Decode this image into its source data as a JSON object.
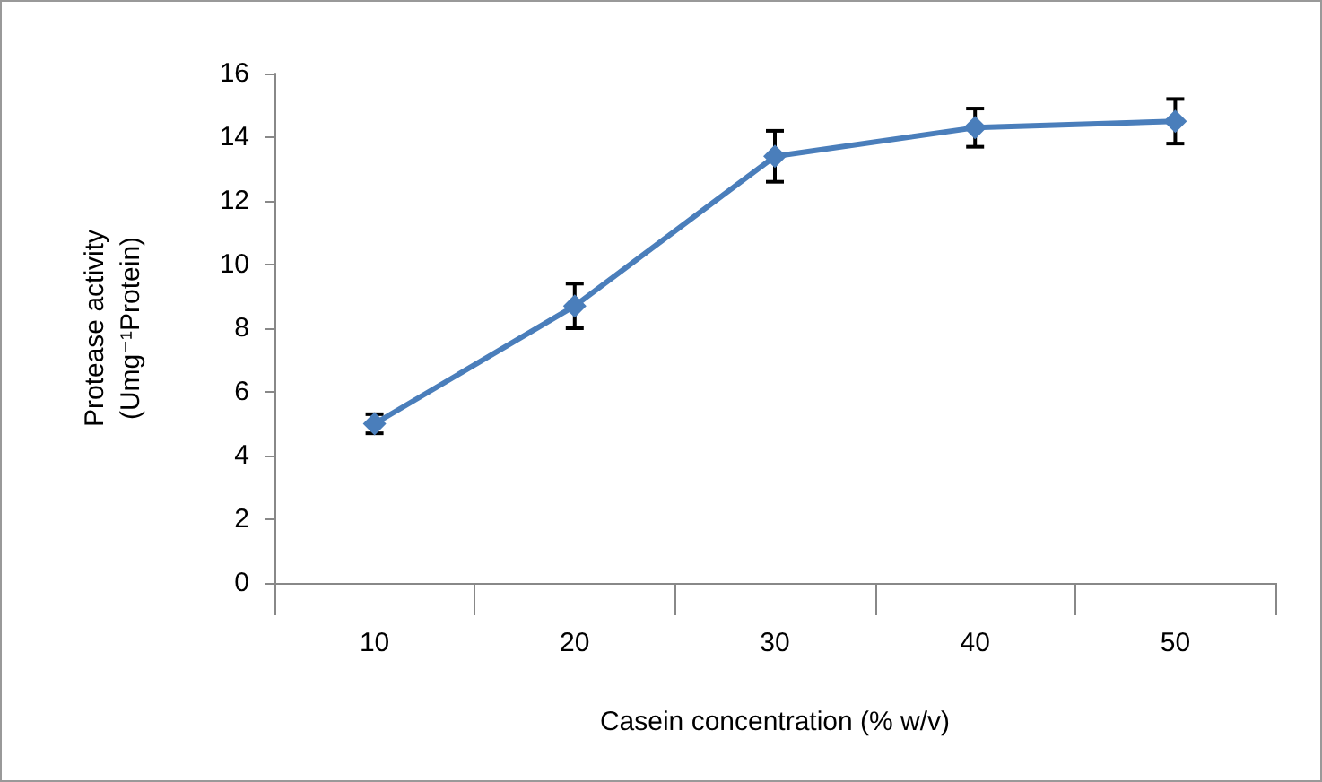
{
  "chart_data": {
    "type": "line",
    "xlabel": "Casein concentration (% w/v)",
    "ylabel": "Protease activity\n(Umg⁻¹Protein)",
    "categories": [
      "10",
      "20",
      "30",
      "40",
      "50"
    ],
    "series": [
      {
        "color": "#4a7ebb",
        "values": [
          5.0,
          8.7,
          13.4,
          14.3,
          14.5
        ],
        "errors": [
          0.3,
          0.7,
          0.8,
          0.6,
          0.7
        ]
      }
    ],
    "ylim": [
      0,
      16
    ],
    "yticks": [
      0,
      2,
      4,
      6,
      8,
      10,
      12,
      14,
      16
    ],
    "grid": false,
    "marker": "diamond",
    "line_style": "solid"
  }
}
